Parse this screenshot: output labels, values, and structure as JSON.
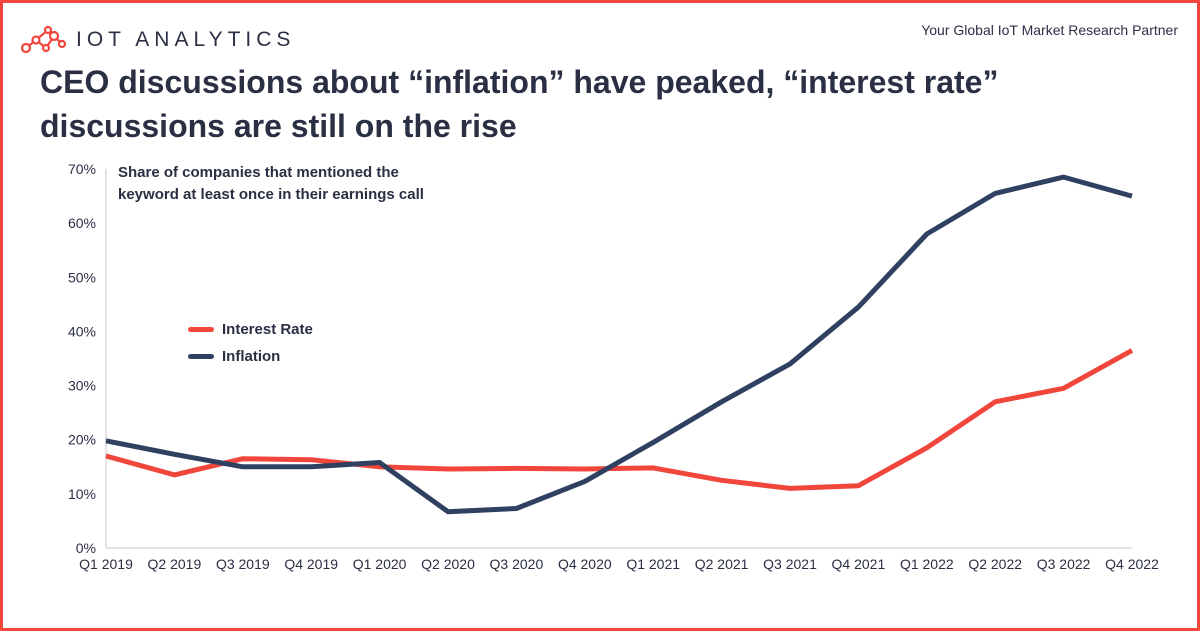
{
  "brand": {
    "name": "IOT ANALYTICS",
    "tagline": "Your Global IoT Market Research Partner",
    "logo_icon": "network-nodes-icon",
    "accent_color": "#f0463c"
  },
  "headline": {
    "line1": "CEO discussions about “inflation” have peaked, “interest rate”",
    "line2": "discussions are still on the rise"
  },
  "chart_data": {
    "type": "line",
    "subtitle": [
      "Share of companies that mentioned the",
      "keyword at least once in their earnings call"
    ],
    "xlabel": "",
    "ylabel": "",
    "categories": [
      "Q1 2019",
      "Q2 2019",
      "Q3 2019",
      "Q4 2019",
      "Q1 2020",
      "Q2 2020",
      "Q3 2020",
      "Q4 2020",
      "Q1 2021",
      "Q2 2021",
      "Q3 2021",
      "Q4 2021",
      "Q1 2022",
      "Q2 2022",
      "Q3 2022",
      "Q4 2022"
    ],
    "ylim": [
      0,
      70
    ],
    "yticks": [
      0,
      10,
      20,
      30,
      40,
      50,
      60,
      70
    ],
    "ytick_labels": [
      "0%",
      "10%",
      "20%",
      "30%",
      "40%",
      "50%",
      "60%",
      "70%"
    ],
    "grid": false,
    "legend_position": "left-middle",
    "series": [
      {
        "name": "Interest Rate",
        "color": "#f0463c",
        "values": [
          17.0,
          13.5,
          16.5,
          16.3,
          15.0,
          14.6,
          14.7,
          14.6,
          14.8,
          12.5,
          11.0,
          11.5,
          18.5,
          27.0,
          29.5,
          36.5
        ]
      },
      {
        "name": "Inflation",
        "color": "#2f4061",
        "values": [
          19.8,
          17.3,
          15.0,
          15.0,
          15.8,
          6.7,
          7.3,
          12.3,
          19.5,
          27.0,
          34.0,
          44.5,
          58.0,
          65.5,
          68.5,
          65.0
        ]
      }
    ]
  }
}
